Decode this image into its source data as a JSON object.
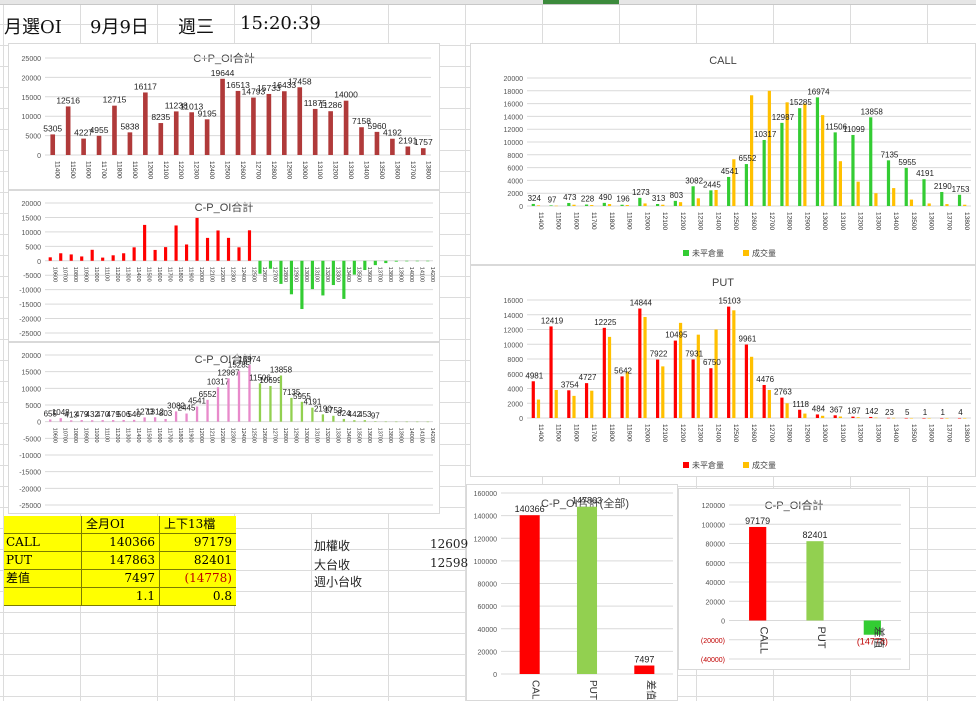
{
  "header": {
    "title": "月選OI",
    "date": "9月9日",
    "weekday": "週三",
    "time": "15:20:39"
  },
  "summary_table": {
    "headers": [
      "",
      "全月OI",
      "上下13檔"
    ],
    "rows": [
      {
        "label": "CALL",
        "full": "140366",
        "range": "97179"
      },
      {
        "label": "PUT",
        "full": "147863",
        "range": "82401"
      },
      {
        "label": "差值",
        "full": "7497",
        "range": "(14778)"
      },
      {
        "label": "",
        "full": "1.1",
        "range": "0.8"
      }
    ]
  },
  "side_info": [
    {
      "label": "加權收",
      "value": "12609"
    },
    {
      "label": "大台收",
      "value": "12598"
    },
    {
      "label": "週小台收",
      "value": ""
    }
  ],
  "colors": {
    "bar_red": "#b03a3a",
    "bright_red": "#ff0000",
    "green": "#33cc33",
    "light_green": "#92d050",
    "gold": "#ffc000",
    "pink": "#e88acb"
  },
  "chart_data": [
    {
      "id": "cp-sum",
      "type": "bar",
      "title": "C+P_OI合計",
      "categories": [
        "11400",
        "11500",
        "11600",
        "11700",
        "11800",
        "11900",
        "12000",
        "12100",
        "12200",
        "12300",
        "12400",
        "12500",
        "12600",
        "12700",
        "12800",
        "12900",
        "13000",
        "13100",
        "13200",
        "13300",
        "13400",
        "13500",
        "13600",
        "13700",
        "13800"
      ],
      "values": [
        5305,
        12516,
        4227,
        4955,
        12715,
        5838,
        16117,
        8235,
        11238,
        11013,
        9195,
        19644,
        16513,
        14793,
        15733,
        16433,
        17458,
        11875,
        11286,
        14000,
        7158,
        5960,
        4192,
        2191,
        1757
      ],
      "ylim": [
        0,
        25000
      ],
      "yticks": [
        0,
        5000,
        10000,
        15000,
        20000,
        25000
      ]
    },
    {
      "id": "cp-diff",
      "type": "bar",
      "title": "C-P_OI合計",
      "categories": [
        "10600",
        "10700",
        "10800",
        "10900",
        "11000",
        "11100",
        "11200",
        "11300",
        "11400",
        "11500",
        "11600",
        "11700",
        "11800",
        "11900",
        "12000",
        "12100",
        "12200",
        "12300",
        "12400",
        "12500",
        "12600",
        "12700",
        "12800",
        "12900",
        "13000",
        "13100",
        "13200",
        "13300",
        "13400",
        "13500",
        "13600",
        "13700",
        "13800",
        "13900",
        "14000",
        "14100",
        "14200"
      ],
      "values": [
        1200,
        2600,
        2200,
        1500,
        3800,
        1100,
        1900,
        2600,
        4657,
        12419,
        3754,
        4727,
        12225,
        5642,
        14844,
        7922,
        10495,
        7931,
        4661,
        10551,
        -4476,
        -2763,
        -8000,
        -11600,
        -16700,
        -9800,
        -12000,
        -8400,
        -13200,
        -4800,
        -3200,
        -1500,
        -800,
        -300,
        -200,
        -100,
        -100
      ],
      "ylim": [
        -25000,
        20000
      ],
      "yticks": [
        -25000,
        -20000,
        -15000,
        -10000,
        -5000,
        0,
        5000,
        10000,
        15000,
        20000
      ]
    },
    {
      "id": "cp-mixed",
      "type": "bar",
      "title": "C-P_OI合計",
      "categories": [
        "10600",
        "10700",
        "10800",
        "10900",
        "11000",
        "11100",
        "11200",
        "11300",
        "11400",
        "11500",
        "11600",
        "11700",
        "11800",
        "11900",
        "12000",
        "12100",
        "12200",
        "12300",
        "12400",
        "12500",
        "12600",
        "12700",
        "12800",
        "12900",
        "13000",
        "13100",
        "13200",
        "13300",
        "13400",
        "13500",
        "13600",
        "13700",
        "13800",
        "13900",
        "14000",
        "14100",
        "14200"
      ],
      "values": [
        655,
        1048,
        413,
        479,
        432,
        470,
        479,
        506,
        540,
        1273,
        1312,
        803,
        3082,
        2445,
        4541,
        6552,
        10317,
        12987,
        15285,
        16974,
        11506,
        10699,
        13858,
        7135,
        5955,
        4191,
        2190,
        1753,
        824,
        442,
        453,
        97,
        20,
        10,
        5,
        2,
        1
      ],
      "labels": [
        "655",
        "1048",
        "413",
        "479",
        "432",
        "470",
        "479",
        "506",
        "540",
        "1273",
        "1312",
        "803",
        "3082",
        "2445",
        "4541",
        "6552",
        "10317",
        "12987",
        "15285",
        "16974",
        "11506",
        "10699",
        "13858",
        "7135",
        "5955",
        "4191",
        "2190",
        "1753",
        "824",
        "442",
        "453",
        "97",
        "",
        "",
        "",
        "",
        ""
      ],
      "ylim": [
        -25000,
        20000
      ],
      "yticks": [
        -25000,
        -20000,
        -15000,
        -10000,
        -5000,
        0,
        5000,
        10000,
        15000,
        20000
      ]
    },
    {
      "id": "call",
      "type": "bar",
      "title": "CALL",
      "categories": [
        "11400",
        "11500",
        "11600",
        "11700",
        "11800",
        "11900",
        "12000",
        "12100",
        "12200",
        "12300",
        "12400",
        "12500",
        "12600",
        "12700",
        "12800",
        "12900",
        "13000",
        "13100",
        "13200",
        "13300",
        "13400",
        "13500",
        "13600",
        "13700",
        "13800"
      ],
      "series": [
        {
          "name": "未平倉量",
          "values": [
            324,
            97,
            473,
            228,
            490,
            196,
            1273,
            313,
            803,
            3082,
            2445,
            4541,
            6552,
            10317,
            12987,
            15285,
            16974,
            11506,
            11099,
            13858,
            7135,
            5955,
            4191,
            2190,
            1753
          ]
        },
        {
          "name": "成交量",
          "values": [
            100,
            50,
            200,
            150,
            300,
            150,
            400,
            200,
            600,
            1200,
            2500,
            7300,
            17300,
            18000,
            16200,
            16000,
            14200,
            7000,
            3800,
            2000,
            2800,
            1000,
            400,
            300,
            200
          ]
        }
      ],
      "labels": [
        "324",
        "97",
        "473",
        "228",
        "490",
        "196",
        "1273",
        "313",
        "803",
        "3082",
        "2445",
        "4541",
        "6552",
        "10317",
        "12987",
        "15285",
        "16974",
        "11506",
        "11099",
        "13858",
        "7135",
        "5955",
        "4191",
        "2190",
        "1753"
      ],
      "ylim": [
        0,
        20000
      ],
      "yticks": [
        0,
        2000,
        4000,
        6000,
        8000,
        10000,
        12000,
        14000,
        16000,
        18000,
        20000
      ]
    },
    {
      "id": "put",
      "type": "bar",
      "title": "PUT",
      "categories": [
        "11400",
        "11500",
        "11600",
        "11700",
        "11800",
        "11900",
        "12000",
        "12100",
        "12200",
        "12300",
        "12400",
        "12500",
        "12600",
        "12700",
        "12800",
        "12900",
        "13000",
        "13100",
        "13200",
        "13300",
        "13400",
        "13500",
        "13600",
        "13700",
        "13800"
      ],
      "series": [
        {
          "name": "未平倉量",
          "values": [
            4981,
            12419,
            3754,
            4727,
            12225,
            5642,
            14844,
            7922,
            10495,
            7931,
            6750,
            15103,
            9961,
            4476,
            2763,
            1118,
            484,
            367,
            187,
            142,
            23,
            5,
            1,
            1,
            4
          ]
        },
        {
          "name": "成交量",
          "values": [
            2500,
            3800,
            3000,
            3700,
            11000,
            6300,
            13700,
            7000,
            12900,
            11300,
            12000,
            14600,
            8300,
            3800,
            2000,
            600,
            300,
            200,
            100,
            50,
            20,
            5,
            1,
            1,
            2
          ]
        }
      ],
      "labels": [
        "4981",
        "12419",
        "3754",
        "4727",
        "12225",
        "5642",
        "14844",
        "7922",
        "10495",
        "7931",
        "6750",
        "15103",
        "9961",
        "4476",
        "2763",
        "1118",
        "484",
        "367",
        "187",
        "142",
        "23",
        "5",
        "1",
        "1",
        "4"
      ],
      "ylim": [
        0,
        16000
      ],
      "yticks": [
        0,
        2000,
        4000,
        6000,
        8000,
        10000,
        12000,
        14000,
        16000
      ]
    },
    {
      "id": "cp-total",
      "type": "bar",
      "title": "C-P_OI合計(全部)",
      "categories": [
        "CALL",
        "PUT",
        "差值"
      ],
      "values": [
        140366,
        147863,
        7497
      ],
      "labels": [
        "140366",
        "147863",
        "7497"
      ],
      "ylim": [
        0,
        160000
      ],
      "yticks": [
        0,
        20000,
        40000,
        60000,
        80000,
        100000,
        120000,
        140000,
        160000
      ]
    },
    {
      "id": "cp-13",
      "type": "bar",
      "title": "C-P_OI合計",
      "categories": [
        "CALL",
        "PUT",
        "差值"
      ],
      "values": [
        97179,
        82401,
        -14778
      ],
      "labels": [
        "97179",
        "82401",
        "(14778)"
      ],
      "ylim": [
        -40000,
        120000
      ],
      "yticks": [
        -40000,
        -20000,
        0,
        20000,
        40000,
        60000,
        80000,
        100000,
        120000
      ],
      "ytick_labels": [
        "(40000)",
        "(20000)",
        "0",
        "20000",
        "40000",
        "60000",
        "80000",
        "100000",
        "120000"
      ]
    }
  ]
}
